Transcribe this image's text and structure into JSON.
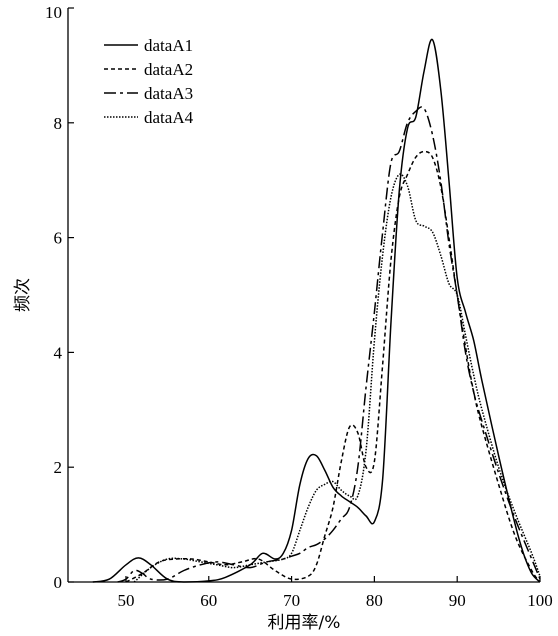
{
  "chart_data": {
    "type": "line",
    "title": "",
    "xlabel": "利用率/%",
    "ylabel": "频次",
    "xlim": [
      43,
      100
    ],
    "ylim": [
      0,
      10
    ],
    "xticks": [
      50,
      60,
      70,
      80,
      90,
      100
    ],
    "yticks": [
      0,
      2,
      4,
      6,
      8,
      10
    ],
    "grid": false,
    "legend_position": "top-left",
    "series": [
      {
        "name": "dataA1",
        "dash": "solid",
        "points": [
          [
            46,
            0
          ],
          [
            48,
            0.05
          ],
          [
            50,
            0.3
          ],
          [
            51.5,
            0.42
          ],
          [
            53,
            0.3
          ],
          [
            55,
            0.05
          ],
          [
            57,
            0
          ],
          [
            60,
            0.02
          ],
          [
            62,
            0.08
          ],
          [
            65,
            0.3
          ],
          [
            66.5,
            0.5
          ],
          [
            68,
            0.4
          ],
          [
            69,
            0.5
          ],
          [
            70,
            0.9
          ],
          [
            71,
            1.7
          ],
          [
            72,
            2.15
          ],
          [
            73,
            2.2
          ],
          [
            74,
            1.95
          ],
          [
            75,
            1.65
          ],
          [
            76,
            1.5
          ],
          [
            77,
            1.4
          ],
          [
            78,
            1.3
          ],
          [
            79,
            1.15
          ],
          [
            80,
            1.05
          ],
          [
            81,
            1.8
          ],
          [
            82,
            4.5
          ],
          [
            83,
            6.8
          ],
          [
            84,
            7.9
          ],
          [
            85,
            8.1
          ],
          [
            86,
            8.9
          ],
          [
            87,
            9.45
          ],
          [
            88,
            8.6
          ],
          [
            89,
            7.0
          ],
          [
            90,
            5.3
          ],
          [
            91,
            4.7
          ],
          [
            92,
            4.2
          ],
          [
            93,
            3.5
          ],
          [
            95,
            2.2
          ],
          [
            97,
            1.0
          ],
          [
            98,
            0.5
          ],
          [
            99,
            0.15
          ],
          [
            100,
            0
          ]
        ]
      },
      {
        "name": "dataA2",
        "dash": "4 3",
        "points": [
          [
            50,
            0
          ],
          [
            52,
            0.15
          ],
          [
            54,
            0.35
          ],
          [
            56,
            0.4
          ],
          [
            58,
            0.4
          ],
          [
            60,
            0.35
          ],
          [
            62,
            0.3
          ],
          [
            64,
            0.35
          ],
          [
            66,
            0.4
          ],
          [
            68,
            0.2
          ],
          [
            70,
            0.05
          ],
          [
            72,
            0.1
          ],
          [
            73,
            0.3
          ],
          [
            74,
            0.8
          ],
          [
            75,
            1.3
          ],
          [
            76,
            2.1
          ],
          [
            77,
            2.7
          ],
          [
            78,
            2.6
          ],
          [
            79,
            2.0
          ],
          [
            80,
            2.1
          ],
          [
            81,
            3.8
          ],
          [
            82,
            5.6
          ],
          [
            83,
            6.7
          ],
          [
            84,
            7.1
          ],
          [
            85,
            7.4
          ],
          [
            86,
            7.5
          ],
          [
            87,
            7.4
          ],
          [
            88,
            6.9
          ],
          [
            89,
            6.0
          ],
          [
            90,
            5.0
          ],
          [
            91,
            4.1
          ],
          [
            92,
            3.3
          ],
          [
            93,
            2.7
          ],
          [
            95,
            1.7
          ],
          [
            97,
            0.8
          ],
          [
            99,
            0.2
          ],
          [
            100,
            0
          ]
        ]
      },
      {
        "name": "dataA3",
        "dash": "12 4 3 4",
        "points": [
          [
            49,
            0
          ],
          [
            50,
            0.05
          ],
          [
            51,
            0.2
          ],
          [
            52,
            0.15
          ],
          [
            53,
            0.05
          ],
          [
            55,
            0.05
          ],
          [
            57,
            0.2
          ],
          [
            59,
            0.3
          ],
          [
            61,
            0.35
          ],
          [
            63,
            0.3
          ],
          [
            65,
            0.25
          ],
          [
            67,
            0.35
          ],
          [
            69,
            0.4
          ],
          [
            70,
            0.45
          ],
          [
            71,
            0.5
          ],
          [
            72,
            0.6
          ],
          [
            73,
            0.65
          ],
          [
            74,
            0.75
          ],
          [
            75,
            0.9
          ],
          [
            76,
            1.1
          ],
          [
            77,
            1.3
          ],
          [
            78,
            2.0
          ],
          [
            79,
            3.4
          ],
          [
            80,
            4.7
          ],
          [
            81,
            6.1
          ],
          [
            82,
            7.3
          ],
          [
            83,
            7.5
          ],
          [
            84,
            8.0
          ],
          [
            85,
            8.2
          ],
          [
            86,
            8.25
          ],
          [
            87,
            7.8
          ],
          [
            88,
            7.0
          ],
          [
            89,
            5.9
          ],
          [
            90,
            5.0
          ],
          [
            91,
            4.0
          ],
          [
            92,
            3.3
          ],
          [
            93,
            2.8
          ],
          [
            95,
            1.9
          ],
          [
            97,
            1.1
          ],
          [
            99,
            0.4
          ],
          [
            100,
            0.05
          ]
        ]
      },
      {
        "name": "dataA4",
        "dash": "1.5 1.5",
        "points": [
          [
            51,
            0
          ],
          [
            53,
            0.25
          ],
          [
            55,
            0.4
          ],
          [
            57,
            0.4
          ],
          [
            59,
            0.35
          ],
          [
            61,
            0.3
          ],
          [
            63,
            0.25
          ],
          [
            65,
            0.3
          ],
          [
            67,
            0.35
          ],
          [
            69,
            0.4
          ],
          [
            70,
            0.5
          ],
          [
            71,
            0.9
          ],
          [
            72,
            1.3
          ],
          [
            73,
            1.6
          ],
          [
            74,
            1.7
          ],
          [
            75,
            1.75
          ],
          [
            76,
            1.6
          ],
          [
            77,
            1.5
          ],
          [
            78,
            1.5
          ],
          [
            79,
            2.3
          ],
          [
            80,
            4.2
          ],
          [
            81,
            5.7
          ],
          [
            82,
            6.7
          ],
          [
            83,
            7.1
          ],
          [
            84,
            6.9
          ],
          [
            85,
            6.3
          ],
          [
            86,
            6.2
          ],
          [
            87,
            6.1
          ],
          [
            88,
            5.7
          ],
          [
            89,
            5.2
          ],
          [
            90,
            5.0
          ],
          [
            91,
            4.3
          ],
          [
            92,
            3.6
          ],
          [
            93,
            3.0
          ],
          [
            95,
            2.0
          ],
          [
            97,
            1.2
          ],
          [
            99,
            0.5
          ],
          [
            100,
            0.1
          ]
        ]
      }
    ]
  }
}
